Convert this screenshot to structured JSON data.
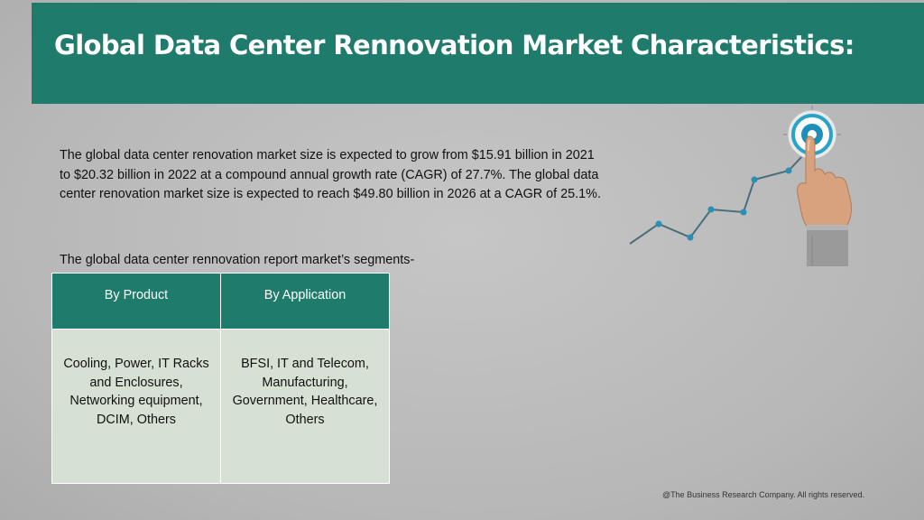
{
  "header": {
    "title": "Global Data Center Rennovation Market Characteristics:"
  },
  "body": {
    "paragraph": "The global data center renovation market size is expected to grow from $15.91 billion in 2021 to $20.32 billion in 2022 at a compound annual growth rate (CAGR) of 27.7%. The global data center renovation market size is expected to reach $49.80 billion in 2026 at a CAGR of 25.1%.",
    "segments_intro": "The global data center rennovation report market’s segments-"
  },
  "segments_table": {
    "headers": [
      "By Product",
      "By Application"
    ],
    "cells": [
      "Cooling, Power, IT Racks and Enclosures, Networking equipment, DCIM, Others",
      "BFSI, IT and Telecom, Manufacturing, Government, Healthcare, Others"
    ]
  },
  "footer": {
    "copyright": "@The Business Research Company. All rights reserved."
  },
  "colors": {
    "header_bg": "#1f7b6b",
    "table_header_bg": "#1f7b6b",
    "table_cell_bg": "#d6e1d3",
    "graph_line": "#4a6f7a",
    "graph_point": "#2b8fb3",
    "page_bg": "#bcbcbc"
  },
  "icons": [
    "growth-line-graph-icon",
    "target-icon",
    "pointing-hand-icon"
  ]
}
